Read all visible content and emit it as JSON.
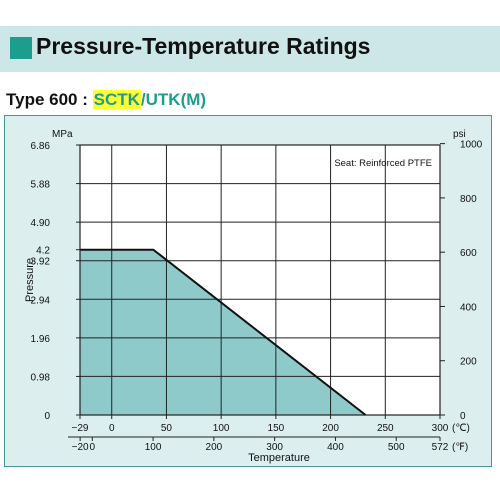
{
  "header": {
    "title": "Pressure-Temperature Ratings"
  },
  "subheader": {
    "prefix": "Type 600 : ",
    "highlight": "SCTK",
    "separator": "/",
    "rest": "UTK(M)"
  },
  "chart_data": {
    "type": "area",
    "title": "",
    "annotation": "Seat: Reinforced PTFE",
    "ylabel": "Pressure",
    "xlabel": "Temperature",
    "y_left_unit": "MPa",
    "y_right_unit": "psi",
    "x_top_unit": "(℃)",
    "x_bottom_unit": "(℉)",
    "xlim_c": [
      -29,
      300
    ],
    "ylim_mpa": [
      0,
      6.86
    ],
    "y_ticks_mpa": [
      "0",
      "0.98",
      "1.96",
      "2.94",
      "3.92",
      "4.2",
      "4.90",
      "5.88",
      "6.86"
    ],
    "y_ticks_psi": [
      "0",
      "200",
      "400",
      "600",
      "800",
      "1000"
    ],
    "x_ticks_c": [
      "−29",
      "0",
      "50",
      "100",
      "150",
      "200",
      "250",
      "300"
    ],
    "x_ticks_f": [
      "−20",
      "0",
      "100",
      "200",
      "300",
      "400",
      "500",
      "572"
    ],
    "grid": true,
    "x": [
      -29,
      38,
      232
    ],
    "series": [
      {
        "values": [
          4.2,
          4.2,
          0
        ]
      }
    ],
    "colors": {
      "fill": "#8fcaca",
      "line": "#111111",
      "panel": "#dcefee",
      "accent": "#1b9e8e"
    }
  }
}
